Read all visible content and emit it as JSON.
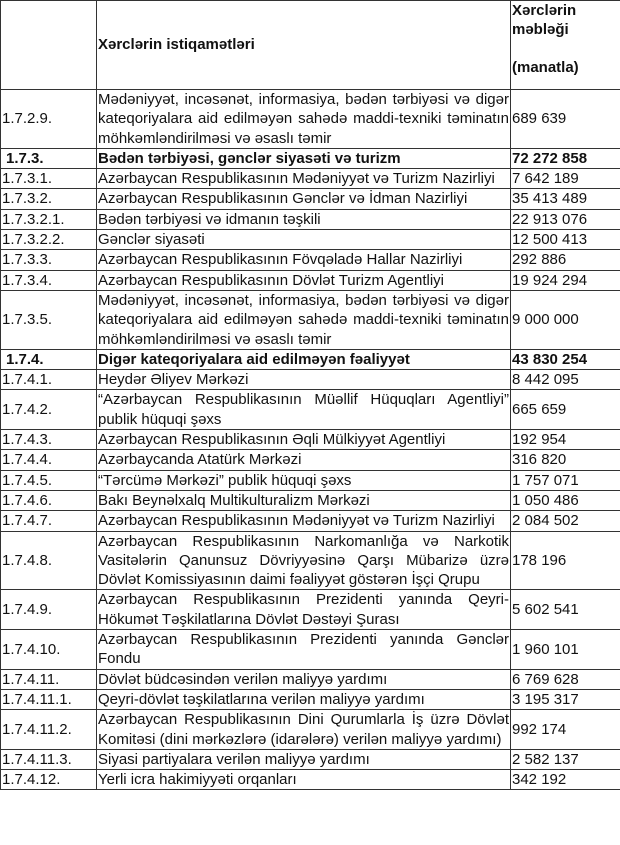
{
  "header": {
    "code": "",
    "direction": "Xərclərin istiqamətləri",
    "amount_line1": "Xərclərin məbləği",
    "amount_line2": "(manatla)"
  },
  "rows": [
    {
      "code": "1.7.2.9.",
      "text": "Mədəniyyət, incəsənət, informasiya, bədən tərbiyəsi və digər kateqoriyalara aid edilməyən sahədə maddi-texniki təminatın möhkəmləndirilməsi və əsaslı təmir",
      "amount": "689 639",
      "bold": false
    },
    {
      "code": "1.7.3.",
      "text": "Bədən tərbiyəsi, gənclər siyasəti və turizm",
      "amount": "72 272 858",
      "bold": true
    },
    {
      "code": "1.7.3.1.",
      "text": "Azərbaycan Respublikasının Mədəniyyət və Turizm Nazirliyi",
      "amount": "7 642 189",
      "bold": false
    },
    {
      "code": "1.7.3.2.",
      "text": "Azərbaycan Respublikasının Gənclər və İdman Nazirliyi",
      "amount": "35 413 489",
      "bold": false
    },
    {
      "code": "1.7.3.2.1.",
      "text": "Bədən tərbiyəsi və idmanın təşkili",
      "amount": "22 913 076",
      "bold": false
    },
    {
      "code": "1.7.3.2.2.",
      "text": "Gənclər siyasəti",
      "amount": "12 500 413",
      "bold": false
    },
    {
      "code": "1.7.3.3.",
      "text": "Azərbaycan Respublikasının Fövqəladə Hallar Nazirliyi",
      "amount": "292 886",
      "bold": false
    },
    {
      "code": "1.7.3.4.",
      "text": "Azərbaycan Respublikasının Dövlət Turizm Agentliyi",
      "amount": "19 924 294",
      "bold": false
    },
    {
      "code": "1.7.3.5.",
      "text": "Mədəniyyət, incəsənət, informasiya, bədən tərbiyəsi və digər kateqoriyalara aid edilməyən sahədə maddi-texniki təminatın möhkəmləndirilməsi və əsaslı təmir",
      "amount": "9 000 000",
      "bold": false
    },
    {
      "code": "1.7.4.",
      "text": "Digər kateqoriyalara aid edilməyən fəaliyyət",
      "amount": "43 830 254",
      "bold": true
    },
    {
      "code": "1.7.4.1.",
      "text": "Heydər Əliyev Mərkəzi",
      "amount": "8 442 095",
      "bold": false
    },
    {
      "code": "1.7.4.2.",
      "text": "“Azərbaycan Respublikasının Müəllif Hüquqları Agentliyi” publik hüquqi şəxs",
      "amount": "665 659",
      "bold": false
    },
    {
      "code": "1.7.4.3.",
      "text": "Azərbaycan Respublikasının Əqli Mülkiyyət Agentliyi",
      "amount": "192 954",
      "bold": false
    },
    {
      "code": "1.7.4.4.",
      "text": "Azərbaycanda Atatürk Mərkəzi",
      "amount": "316 820",
      "bold": false
    },
    {
      "code": "1.7.4.5.",
      "text": "“Tərcümə Mərkəzi” publik hüquqi şəxs",
      "amount": "1 757 071",
      "bold": false
    },
    {
      "code": "1.7.4.6.",
      "text": "Bakı Beynəlxalq  Multikulturalizm Mərkəzi",
      "amount": "1 050 486",
      "bold": false
    },
    {
      "code": "1.7.4.7.",
      "text": "Azərbaycan Respublikasının Mədəniyyət və Turizm Nazirliyi",
      "amount": "2 084 502",
      "bold": false
    },
    {
      "code": "1.7.4.8.",
      "text": "Azərbaycan Respublikasının Narkomanlığa və Narkotik Vasitələrin Qanunsuz Dövriyyəsinə Qarşı Mübarizə üzrə Dövlət Komissiyasının daimi fəaliyyət göstərən İşçi Qrupu",
      "amount": "178 196",
      "bold": false
    },
    {
      "code": "1.7.4.9.",
      "text": "Azərbaycan Respublikasının Prezidenti yanında Qeyri-Hökumət Təşkilatlarına Dövlət Dəstəyi Şurası",
      "amount": "5 602 541",
      "bold": false
    },
    {
      "code": "1.7.4.10.",
      "text": "Azərbaycan Respublikasının Prezidenti yanında Gənclər Fondu",
      "amount": "1 960 101",
      "bold": false
    },
    {
      "code": "1.7.4.11.",
      "text": "Dövlət büdcəsindən verilən maliyyə yardımı",
      "amount": "6 769 628",
      "bold": false
    },
    {
      "code": "1.7.4.11.1.",
      "text": "Qeyri-dövlət təşkilatlarına verilən maliyyə yardımı",
      "amount": "3 195 317",
      "bold": false
    },
    {
      "code": "1.7.4.11.2.",
      "text": "Azərbaycan Respublikasının Dini Qurumlarla İş üzrə Dövlət Komitəsi (dini mərkəzlərə (idarələrə) verilən maliyyə yardımı)",
      "amount": "992 174",
      "bold": false
    },
    {
      "code": "1.7.4.11.3.",
      "text": "Siyasi partiyalara verilən maliyyə yardımı",
      "amount": "2 582 137",
      "bold": false
    },
    {
      "code": "1.7.4.12.",
      "text": "Yerli icra hakimiyyəti orqanları",
      "amount": "342 192",
      "bold": false
    }
  ]
}
